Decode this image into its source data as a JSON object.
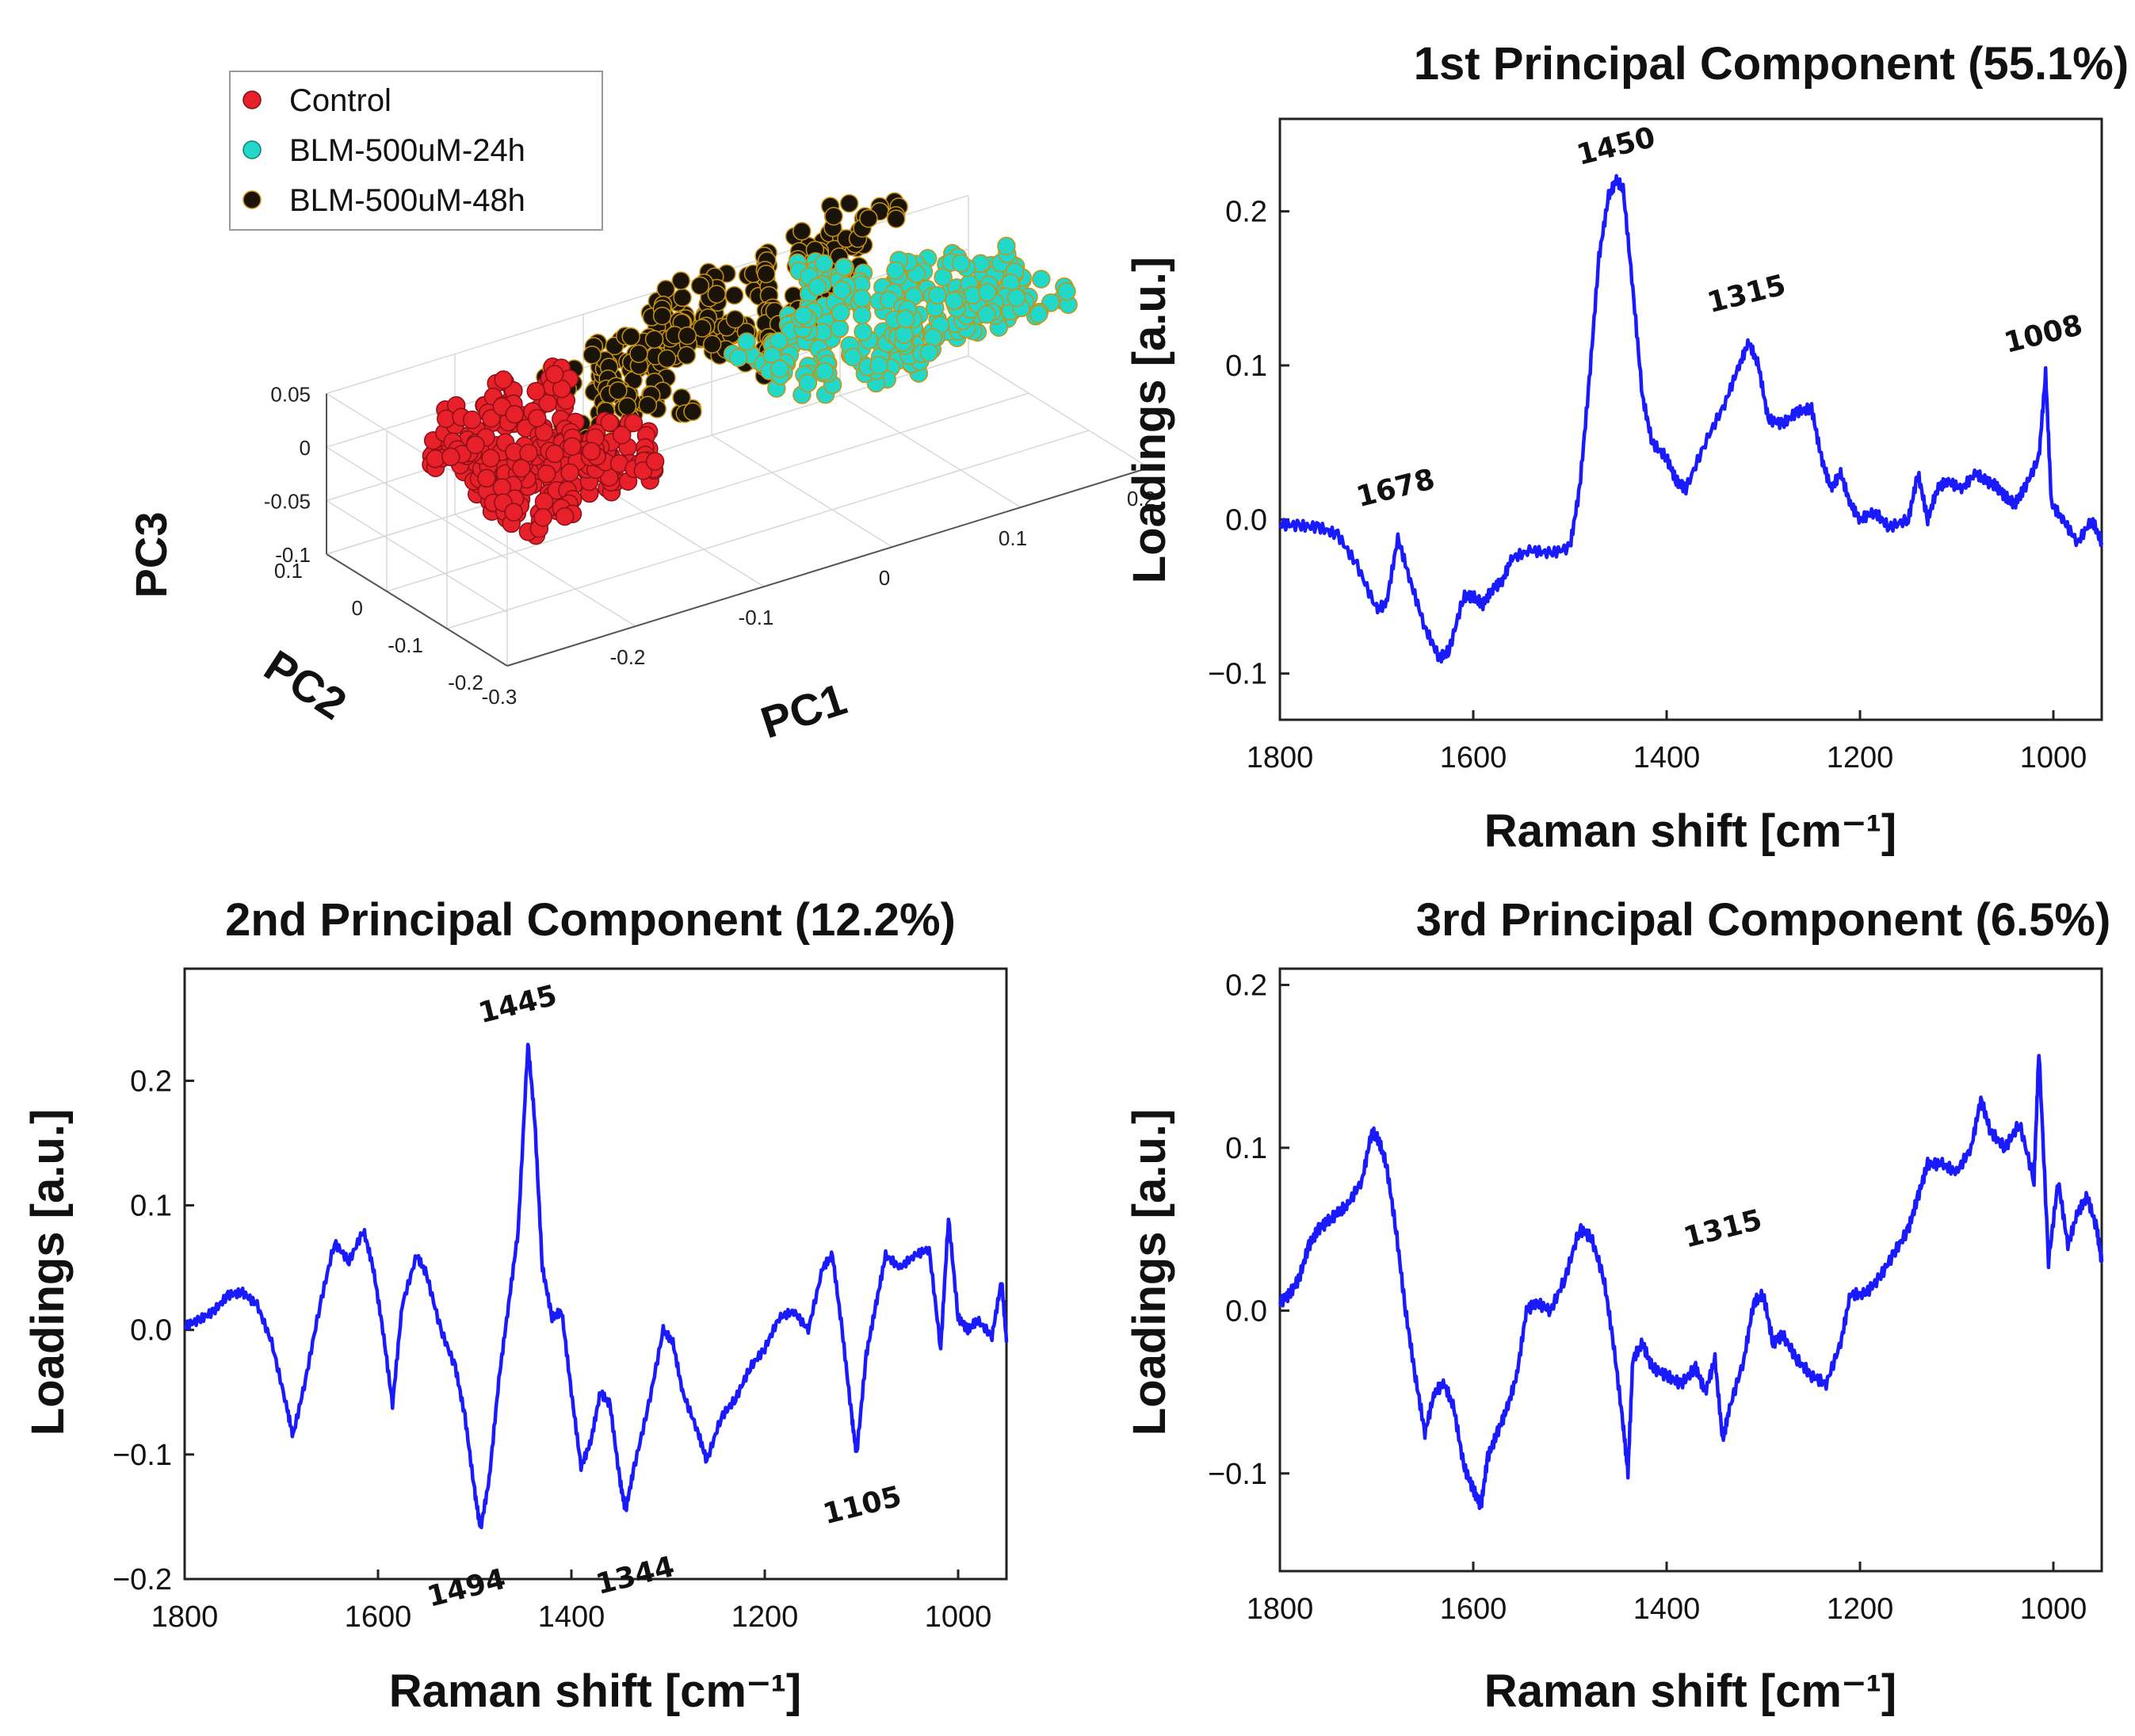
{
  "chart_data": [
    {
      "type": "scatter",
      "subtype": "3d-scatter",
      "xlabel": "PC1",
      "ylabel": "PC2",
      "zlabel": "PC3",
      "x_ticks": [
        "-0.3",
        "-0.2",
        "-0.1",
        "0",
        "0.1",
        "0.2"
      ],
      "y_ticks": [
        "-0.2",
        "-0.1",
        "0",
        "0.1"
      ],
      "z_ticks": [
        "-0.1",
        "-0.05",
        "0",
        "0.05"
      ],
      "xlim": [
        -0.3,
        0.2
      ],
      "ylim": [
        -0.2,
        0.1
      ],
      "zlim": [
        -0.1,
        0.05
      ],
      "grid": true,
      "legend": {
        "position": "top-left",
        "entries": [
          "Control",
          "BLM-500uM-24h",
          "BLM-500uM-48h"
        ]
      },
      "series": [
        {
          "name": "Control",
          "color": "#e8202a",
          "x": [
            -0.24,
            -0.22,
            -0.2,
            -0.18,
            -0.16,
            -0.14,
            -0.21,
            -0.19,
            -0.17,
            -0.15,
            -0.13,
            -0.23,
            -0.2,
            -0.18,
            -0.16,
            -0.12
          ],
          "y": [
            0.02,
            0.0,
            -0.01,
            0.01,
            -0.02,
            0.0,
            0.03,
            0.02,
            -0.03,
            0.01,
            -0.01,
            -0.01,
            -0.04,
            0.0,
            0.02,
            -0.02
          ],
          "z": [
            0.0,
            -0.02,
            -0.04,
            0.02,
            -0.01,
            -0.05,
            0.03,
            -0.03,
            0.0,
            -0.06,
            -0.02,
            0.01,
            -0.05,
            0.04,
            -0.03,
            -0.04
          ]
        },
        {
          "name": "BLM-500uM-24h",
          "color": "#22d9c9",
          "x": [
            0.0,
            0.04,
            0.08,
            0.12,
            0.16,
            0.2,
            0.06,
            0.1,
            0.14,
            0.18,
            0.02,
            0.09,
            0.13,
            0.17,
            0.05,
            0.11
          ],
          "y": [
            0.0,
            0.02,
            -0.02,
            0.01,
            -0.01,
            0.0,
            0.04,
            0.03,
            -0.03,
            0.02,
            -0.02,
            0.0,
            0.01,
            -0.02,
            0.02,
            -0.01
          ],
          "z": [
            0.02,
            0.0,
            -0.02,
            0.03,
            0.01,
            -0.01,
            0.05,
            -0.03,
            0.0,
            0.02,
            -0.01,
            0.04,
            -0.02,
            0.0,
            0.03,
            0.01
          ]
        },
        {
          "name": "BLM-500uM-48h",
          "color": "#1a1408",
          "x": [
            -0.15,
            -0.12,
            -0.09,
            -0.06,
            -0.03,
            0.0,
            0.03,
            0.06,
            -0.1,
            -0.05,
            0.01,
            0.05,
            0.09,
            -0.13,
            -0.07,
            -0.02
          ],
          "y": [
            0.02,
            0.0,
            0.03,
            -0.01,
            0.02,
            0.04,
            0.01,
            0.03,
            -0.02,
            0.05,
            0.0,
            0.02,
            0.04,
            0.01,
            0.03,
            -0.01
          ],
          "z": [
            0.03,
            0.05,
            0.02,
            0.06,
            0.04,
            0.07,
            0.05,
            0.08,
            0.01,
            0.06,
            0.03,
            0.07,
            0.09,
            0.0,
            0.04,
            0.02
          ]
        }
      ]
    },
    {
      "type": "line",
      "title": "1st Principal Component  (55.1%)",
      "xlabel": "Raman shift [cm⁻¹]",
      "ylabel": "Loadings [a.u.]",
      "xlim": [
        1800,
        950
      ],
      "ylim": [
        -0.13,
        0.26
      ],
      "x_ticks": [
        1800,
        1600,
        1400,
        1200,
        1000
      ],
      "y_ticks": [
        -0.1,
        0.0,
        0.1,
        0.2
      ],
      "y_tick_labels": [
        "−0.1",
        "0.0",
        "0.1",
        "0.2"
      ],
      "color": "#1a1aff",
      "annotations": [
        {
          "text": "1678",
          "x": 1678,
          "y": 0.0
        },
        {
          "text": "1450",
          "x": 1450,
          "y": 0.225
        },
        {
          "text": "1315",
          "x": 1315,
          "y": 0.125
        },
        {
          "text": "1008",
          "x": 1008,
          "y": 0.1
        }
      ],
      "x": [
        1800,
        1780,
        1760,
        1740,
        1720,
        1700,
        1690,
        1678,
        1665,
        1650,
        1635,
        1625,
        1610,
        1600,
        1590,
        1580,
        1570,
        1560,
        1540,
        1520,
        1500,
        1490,
        1480,
        1470,
        1460,
        1452,
        1445,
        1435,
        1425,
        1415,
        1400,
        1390,
        1380,
        1360,
        1340,
        1325,
        1315,
        1305,
        1295,
        1280,
        1265,
        1250,
        1240,
        1230,
        1220,
        1210,
        1200,
        1185,
        1170,
        1150,
        1140,
        1130,
        1120,
        1110,
        1095,
        1080,
        1070,
        1060,
        1050,
        1040,
        1030,
        1015,
        1008,
        1002,
        990,
        975,
        960,
        950
      ],
      "values": [
        -0.003,
        -0.004,
        -0.005,
        -0.01,
        -0.03,
        -0.058,
        -0.055,
        -0.012,
        -0.04,
        -0.07,
        -0.09,
        -0.085,
        -0.05,
        -0.05,
        -0.055,
        -0.045,
        -0.04,
        -0.025,
        -0.02,
        -0.022,
        -0.018,
        0.02,
        0.09,
        0.17,
        0.21,
        0.22,
        0.215,
        0.15,
        0.08,
        0.05,
        0.04,
        0.025,
        0.02,
        0.05,
        0.075,
        0.1,
        0.115,
        0.1,
        0.065,
        0.062,
        0.07,
        0.072,
        0.04,
        0.02,
        0.03,
        0.01,
        0.0,
        0.005,
        -0.005,
        0.0,
        0.03,
        0.0,
        0.02,
        0.025,
        0.02,
        0.03,
        0.025,
        0.022,
        0.015,
        0.01,
        0.02,
        0.04,
        0.095,
        0.01,
        0.0,
        -0.015,
        0.0,
        -0.015
      ]
    },
    {
      "type": "line",
      "title": "2nd Principal Component  (12.2%)",
      "xlabel": "Raman shift [cm⁻¹]",
      "ylabel": "Loadings [a.u.]",
      "xlim": [
        1800,
        950
      ],
      "ylim": [
        -0.2,
        0.29
      ],
      "x_ticks": [
        1800,
        1600,
        1400,
        1200,
        1000
      ],
      "y_ticks": [
        -0.2,
        -0.1,
        0.0,
        0.1,
        0.2
      ],
      "y_tick_labels": [
        "−0.2",
        "−0.1",
        "0.0",
        "0.1",
        "0.2"
      ],
      "color": "#1a1aff",
      "annotations": [
        {
          "text": "1445",
          "x": 1445,
          "y": 0.24
        },
        {
          "text": "1494",
          "x": 1494,
          "y": -0.17
        },
        {
          "text": "1344",
          "x": 1344,
          "y": -0.16
        },
        {
          "text": "1105",
          "x": 1105,
          "y": -0.11
        }
      ],
      "x": [
        1800,
        1785,
        1770,
        1755,
        1740,
        1725,
        1710,
        1695,
        1688,
        1675,
        1660,
        1645,
        1630,
        1615,
        1605,
        1595,
        1585,
        1575,
        1560,
        1550,
        1535,
        1520,
        1510,
        1500,
        1494,
        1485,
        1475,
        1465,
        1455,
        1445,
        1438,
        1430,
        1420,
        1410,
        1400,
        1390,
        1380,
        1370,
        1360,
        1350,
        1344,
        1335,
        1320,
        1305,
        1295,
        1285,
        1270,
        1260,
        1245,
        1230,
        1215,
        1200,
        1185,
        1170,
        1155,
        1140,
        1130,
        1120,
        1110,
        1105,
        1095,
        1085,
        1075,
        1060,
        1045,
        1030,
        1018,
        1010,
        1000,
        990,
        980,
        965,
        955,
        950
      ],
      "values": [
        0.003,
        0.008,
        0.015,
        0.028,
        0.03,
        0.02,
        -0.01,
        -0.06,
        -0.085,
        -0.04,
        0.02,
        0.07,
        0.055,
        0.08,
        0.05,
        0.0,
        -0.06,
        0.02,
        0.06,
        0.045,
        0.0,
        -0.03,
        -0.07,
        -0.13,
        -0.16,
        -0.12,
        -0.04,
        0.02,
        0.08,
        0.23,
        0.17,
        0.05,
        0.01,
        0.015,
        -0.05,
        -0.11,
        -0.09,
        -0.05,
        -0.06,
        -0.12,
        -0.145,
        -0.11,
        -0.06,
        -0.0,
        -0.01,
        -0.05,
        -0.08,
        -0.105,
        -0.07,
        -0.055,
        -0.03,
        -0.015,
        0.01,
        0.015,
        0.0,
        0.05,
        0.06,
        0.0,
        -0.07,
        -0.1,
        -0.02,
        0.02,
        0.06,
        0.05,
        0.06,
        0.065,
        -0.015,
        0.09,
        0.01,
        0.0,
        0.008,
        -0.005,
        0.04,
        -0.01
      ]
    },
    {
      "type": "line",
      "title": "3rd Principal Component  (6.5%)",
      "xlabel": "Raman shift [cm⁻¹]",
      "ylabel": "Loadings [a.u.]",
      "xlim": [
        1800,
        950
      ],
      "ylim": [
        -0.16,
        0.21
      ],
      "x_ticks": [
        1800,
        1600,
        1400,
        1200,
        1000
      ],
      "y_ticks": [
        -0.1,
        0.0,
        0.1,
        0.2
      ],
      "y_tick_labels": [
        "−0.1",
        "0.0",
        "0.1",
        "0.2"
      ],
      "color": "#1a1aff",
      "annotations": [
        {
          "text": "1315",
          "x": 1315,
          "y": 0.03
        }
      ],
      "x": [
        1800,
        1790,
        1780,
        1770,
        1760,
        1750,
        1740,
        1730,
        1715,
        1705,
        1698,
        1690,
        1680,
        1670,
        1660,
        1650,
        1640,
        1630,
        1620,
        1610,
        1600,
        1592,
        1585,
        1575,
        1565,
        1555,
        1545,
        1535,
        1520,
        1505,
        1490,
        1478,
        1465,
        1455,
        1445,
        1440,
        1435,
        1425,
        1415,
        1400,
        1385,
        1370,
        1360,
        1350,
        1342,
        1335,
        1320,
        1310,
        1300,
        1290,
        1280,
        1265,
        1250,
        1235,
        1220,
        1210,
        1195,
        1180,
        1165,
        1150,
        1140,
        1130,
        1115,
        1100,
        1085,
        1075,
        1065,
        1050,
        1035,
        1020,
        1015,
        1005,
        995,
        985,
        975,
        965,
        955,
        950
      ],
      "values": [
        0.005,
        0.01,
        0.02,
        0.04,
        0.05,
        0.055,
        0.06,
        0.065,
        0.08,
        0.11,
        0.105,
        0.09,
        0.05,
        0.0,
        -0.04,
        -0.075,
        -0.05,
        -0.045,
        -0.06,
        -0.095,
        -0.11,
        -0.12,
        -0.09,
        -0.075,
        -0.06,
        -0.04,
        0.0,
        0.005,
        0.0,
        0.02,
        0.05,
        0.045,
        0.02,
        -0.02,
        -0.07,
        -0.1,
        -0.03,
        -0.02,
        -0.035,
        -0.04,
        -0.045,
        -0.035,
        -0.05,
        -0.03,
        -0.08,
        -0.06,
        -0.03,
        0.005,
        0.01,
        -0.02,
        -0.015,
        -0.03,
        -0.04,
        -0.045,
        -0.02,
        0.01,
        0.01,
        0.02,
        0.035,
        0.05,
        0.07,
        0.09,
        0.09,
        0.085,
        0.1,
        0.13,
        0.11,
        0.1,
        0.115,
        0.08,
        0.16,
        0.03,
        0.08,
        0.04,
        0.06,
        0.07,
        0.05,
        0.03
      ]
    }
  ]
}
